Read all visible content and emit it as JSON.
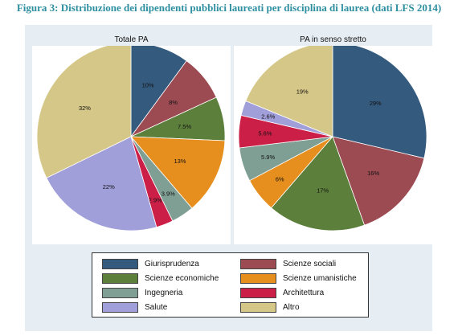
{
  "figure_title": "Figura 3: Distribuzione dei dipendenti pubblici laureati per disciplina di laurea (dati LFS 2014)",
  "colors": {
    "Giurisprudenza": "#345a7e",
    "Scienze sociali": "#9c4b52",
    "Scienze economiche": "#5c803b",
    "Scienze umanistiche": "#e78f1e",
    "Ingegneria": "#7f9f94",
    "Architettura": "#cc1f47",
    "Salute": "#a19fda",
    "Altro": "#d5c787"
  },
  "chart_data": [
    {
      "type": "pie",
      "title": "Totale PA",
      "categories": [
        "Giurisprudenza",
        "Scienze sociali",
        "Scienze economiche",
        "Scienze umanistiche",
        "Ingegneria",
        "Architettura",
        "Salute",
        "Altro"
      ],
      "values": [
        10,
        8,
        7.5,
        13,
        3.9,
        2.9,
        22,
        32
      ],
      "labels": [
        "10%",
        "8%",
        "7.5%",
        "13%",
        "3.9%",
        "2.9%",
        "22%",
        "32%"
      ]
    },
    {
      "type": "pie",
      "title": "PA in senso stretto",
      "categories": [
        "Giurisprudenza",
        "Scienze sociali",
        "Scienze economiche",
        "Scienze umanistiche",
        "Ingegneria",
        "Architettura",
        "Salute",
        "Altro"
      ],
      "values": [
        29,
        16,
        17,
        6,
        5.9,
        5.6,
        2.6,
        19
      ],
      "labels": [
        "29%",
        "16%",
        "17%",
        "6%",
        "5.9%",
        "5.6%",
        "2.6%",
        "19%"
      ]
    }
  ],
  "legend": {
    "items": [
      "Giurisprudenza",
      "Scienze sociali",
      "Scienze economiche",
      "Scienze umanistiche",
      "Ingegneria",
      "Architettura",
      "Salute",
      "Altro"
    ]
  }
}
